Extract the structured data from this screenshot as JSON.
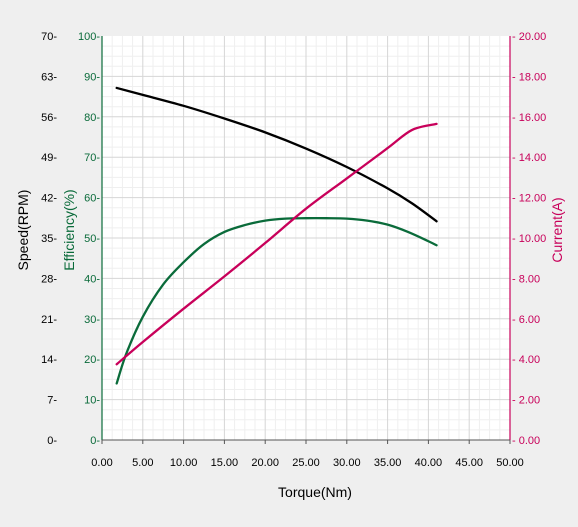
{
  "chart_data": {
    "type": "line",
    "xlabel": "Torque(Nm)",
    "xlim": [
      0,
      50
    ],
    "x_ticks": [
      "0.00",
      "5.00",
      "10.00",
      "15.00",
      "20.00",
      "25.00",
      "30.00",
      "35.00",
      "40.00",
      "45.00",
      "50.00"
    ],
    "axes": {
      "speed": {
        "label": "Speed(RPM)",
        "range": [
          0,
          70
        ],
        "ticks": [
          "0-",
          "7-",
          "14-",
          "21-",
          "28-",
          "35-",
          "42-",
          "49-",
          "56-",
          "63-",
          "70-"
        ],
        "color": "#000000"
      },
      "efficiency": {
        "label": "Efficiency(%)",
        "range": [
          0,
          100
        ],
        "ticks": [
          "0-",
          "10-",
          "20-",
          "30-",
          "40-",
          "50-",
          "60-",
          "70-",
          "80-",
          "90-",
          "100-"
        ],
        "color": "#0a6b3a"
      },
      "current": {
        "label": "Current(A)",
        "range": [
          0,
          20
        ],
        "ticks": [
          "- 0.00",
          "- 2.00",
          "- 4.00",
          "- 6.00",
          "- 8.00",
          "- 10.00",
          "- 12.00",
          "- 14.00",
          "- 16.00",
          "- 18.00",
          "- 20.00"
        ],
        "color": "#c8005a"
      }
    },
    "series": [
      {
        "axis": "speed",
        "color": "#000000",
        "points": [
          [
            1.8,
            61.0
          ],
          [
            5,
            59.8
          ],
          [
            10,
            57.9
          ],
          [
            15,
            55.7
          ],
          [
            20,
            53.3
          ],
          [
            25,
            50.5
          ],
          [
            30,
            47.3
          ],
          [
            35,
            43.6
          ],
          [
            38,
            41.0
          ],
          [
            41,
            37.9
          ]
        ]
      },
      {
        "axis": "efficiency",
        "color": "#0a6b3a",
        "points": [
          [
            1.8,
            14.0
          ],
          [
            3,
            21.5
          ],
          [
            5,
            30.5
          ],
          [
            7.5,
            38.5
          ],
          [
            10,
            44.0
          ],
          [
            12.5,
            48.5
          ],
          [
            15,
            51.5
          ],
          [
            17.5,
            53.2
          ],
          [
            20,
            54.3
          ],
          [
            22.5,
            54.8
          ],
          [
            25,
            54.9
          ],
          [
            27.5,
            54.9
          ],
          [
            30,
            54.8
          ],
          [
            32.5,
            54.3
          ],
          [
            35,
            53.3
          ],
          [
            37.5,
            51.5
          ],
          [
            40,
            49.2
          ],
          [
            41,
            48.2
          ]
        ]
      },
      {
        "axis": "current",
        "color": "#c8005a",
        "points": [
          [
            1.8,
            3.75
          ],
          [
            5,
            4.85
          ],
          [
            10,
            6.5
          ],
          [
            15,
            8.1
          ],
          [
            20,
            9.75
          ],
          [
            25,
            11.45
          ],
          [
            30,
            12.95
          ],
          [
            35,
            14.45
          ],
          [
            38,
            15.35
          ],
          [
            41,
            15.65
          ]
        ]
      }
    ],
    "grid": true,
    "legend": "none"
  }
}
